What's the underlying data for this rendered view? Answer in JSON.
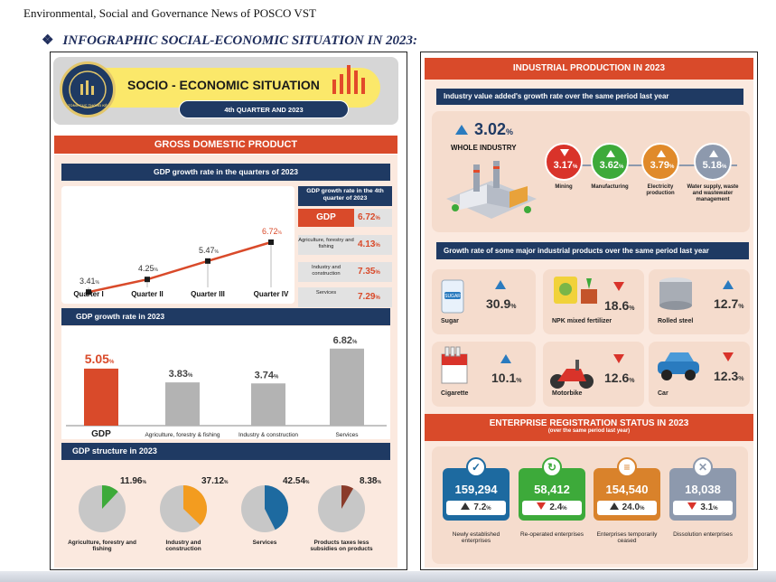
{
  "header": {
    "top_text": "Environmental,  Social and Governance News of POSCO VST",
    "subtitle": "INFOGRAPHIC SOCIAL-ECONOMIC SITUATION IN 2023:"
  },
  "left": {
    "logo_text": "TỔNG CỤC THỐNG KÊ",
    "banner_title": "SOCIO - ECONOMIC SITUATION",
    "banner_sub": "4th QUARTER AND 2023",
    "gdp_title": "GROSS DOMESTIC PRODUCT",
    "quarters_title": "GDP growth rate in the quarters of 2023",
    "quarters": [
      {
        "label": "Quarter I",
        "value": "3.41",
        "unit": "%"
      },
      {
        "label": "Quarter II",
        "value": "4.25",
        "unit": "%"
      },
      {
        "label": "Quarter III",
        "value": "5.47",
        "unit": "%"
      },
      {
        "label": "Quarter IV",
        "value": "6.72",
        "unit": "%"
      }
    ],
    "q4_box_title": "GDP growth rate in the 4th quarter of 2023",
    "q4_rows": [
      {
        "label": "GDP",
        "value": "6.72",
        "unit": "%"
      },
      {
        "label": "Agriculture, forestry and fishing",
        "value": "4.13",
        "unit": "%"
      },
      {
        "label": "Industry and construction",
        "value": "7.35",
        "unit": "%"
      },
      {
        "label": "Services",
        "value": "7.29",
        "unit": "%"
      }
    ],
    "year_title": "GDP growth rate in 2023",
    "year_bars": [
      {
        "label": "GDP",
        "value": "5.05",
        "unit": "%",
        "num": 5.05,
        "color": "#d94a2a"
      },
      {
        "label": "Agriculture, forestry & fishing",
        "value": "3.83",
        "unit": "%",
        "num": 3.83,
        "color": "#b3b3b3"
      },
      {
        "label": "Industry & construction",
        "value": "3.74",
        "unit": "%",
        "num": 3.74,
        "color": "#b3b3b3"
      },
      {
        "label": "Services",
        "value": "6.82",
        "unit": "%",
        "num": 6.82,
        "color": "#b3b3b3"
      }
    ],
    "structure_title": "GDP structure in 2023",
    "structure": [
      {
        "label": "Agriculture, forestry and fishing",
        "value": "11.96",
        "unit": "%",
        "frac": 0.1196,
        "color": "#3daa3a"
      },
      {
        "label": "Industry and construction",
        "value": "37.12",
        "unit": "%",
        "frac": 0.3712,
        "color": "#f39c1f"
      },
      {
        "label": "Services",
        "value": "42.54",
        "unit": "%",
        "frac": 0.4254,
        "color": "#1d6aa0"
      },
      {
        "label": "Products taxes less subsidies on products",
        "value": "8.38",
        "unit": "%",
        "frac": 0.0838,
        "color": "#8a3b2a"
      }
    ]
  },
  "right": {
    "ip_title": "INDUSTRIAL PRODUCTION IN 2023",
    "ip_sub": "Industry value added's growth rate over the same period last year",
    "whole_value": "3.02",
    "whole_unit": "%",
    "whole_label": "WHOLE INDUSTRY",
    "sectors": [
      {
        "value": "3.17",
        "unit": "%",
        "label": "Mining",
        "color": "#d9332a",
        "dir": "down"
      },
      {
        "value": "3.62",
        "unit": "%",
        "label": "Manufacturing",
        "color": "#3daa3a",
        "dir": "up"
      },
      {
        "value": "3.79",
        "unit": "%",
        "label": "Electricity production",
        "color": "#e08a2a",
        "dir": "up"
      },
      {
        "value": "5.18",
        "unit": "%",
        "label": "Water supply, waste and wastewater management",
        "color": "#8d99ad",
        "dir": "up"
      }
    ],
    "products_title": "Growth rate of some major industrial products over the same period last year",
    "products": [
      {
        "label": "Sugar",
        "value": "30.9",
        "unit": "%",
        "dir": "up",
        "icon_text": "SUGAR"
      },
      {
        "label": "NPK mixed fertilizer",
        "value": "18.6",
        "unit": "%",
        "dir": "down"
      },
      {
        "label": "Rolled steel",
        "value": "12.7",
        "unit": "%",
        "dir": "up"
      },
      {
        "label": "Cigarette",
        "value": "10.1",
        "unit": "%",
        "dir": "up"
      },
      {
        "label": "Motorbike",
        "value": "12.6",
        "unit": "%",
        "dir": "down"
      },
      {
        "label": "Car",
        "value": "12.3",
        "unit": "%",
        "dir": "down"
      }
    ],
    "ent_title": "ENTERPRISE REGISTRATION STATUS IN 2023",
    "ent_sub": "(over the same period last year)",
    "enterprises": [
      {
        "count": "159,294",
        "value": "7.2",
        "unit": "%",
        "dir": "up",
        "label": "Newly established enterprises",
        "color": "#1d6aa0",
        "icon": "check-icon"
      },
      {
        "count": "58,412",
        "value": "2.4",
        "unit": "%",
        "dir": "down",
        "label": "Re-operated enterprises",
        "color": "#3daa3a",
        "icon": "refresh-icon"
      },
      {
        "count": "154,540",
        "value": "24.0",
        "unit": "%",
        "dir": "up",
        "label": "Enterprises temporarily ceased",
        "color": "#d9822b",
        "icon": "pause-icon"
      },
      {
        "count": "18,038",
        "value": "3.1",
        "unit": "%",
        "dir": "down",
        "label": "Dissolution enterprises",
        "color": "#8d99ad",
        "icon": "close-icon"
      }
    ]
  }
}
